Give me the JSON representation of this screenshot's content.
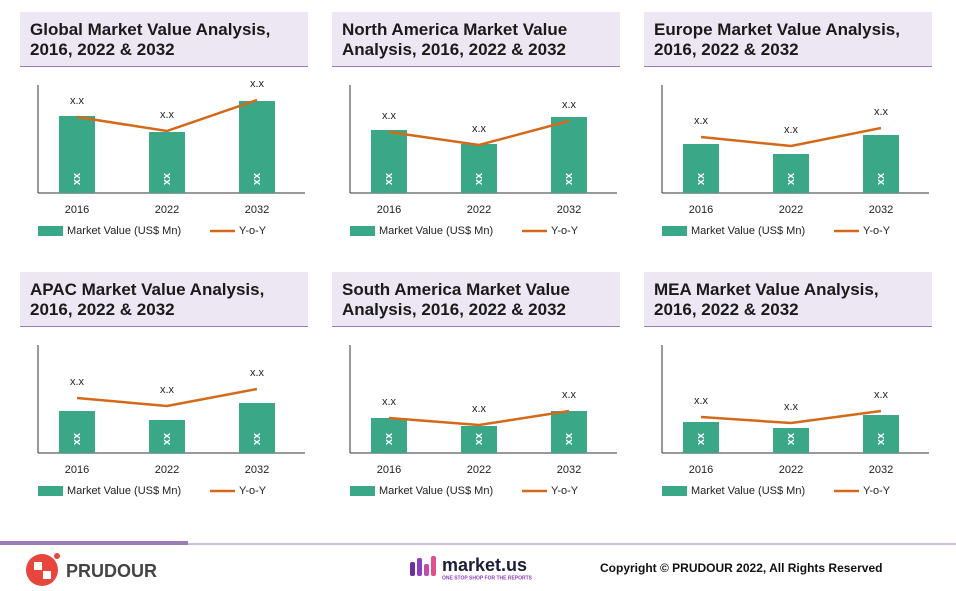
{
  "chart_data": [
    {
      "type": "bar",
      "title": "Global Market Value Analysis, 2016, 2022 & 2032",
      "categories": [
        "2016",
        "2022",
        "2032"
      ],
      "ylim": [
        0,
        108
      ],
      "series": [
        {
          "name": "Market Value (US$ Mn)",
          "color": "#3aa787",
          "values": [
            77,
            61,
            92
          ],
          "value_labels": [
            "xx",
            "xx",
            "xx"
          ]
        },
        {
          "name": "Y-o-Y",
          "type": "line",
          "color": "#d4691a",
          "values": [
            76,
            62,
            93
          ],
          "value_labels": [
            "x.x",
            "x.x",
            "x.x"
          ]
        }
      ]
    },
    {
      "type": "bar",
      "title": "North America Market Value Analysis, 2016, 2022 & 2032",
      "categories": [
        "2016",
        "2022",
        "2032"
      ],
      "ylim": [
        0,
        108
      ],
      "series": [
        {
          "name": "Market Value (US$ Mn)",
          "color": "#3aa787",
          "values": [
            63,
            49,
            76
          ],
          "value_labels": [
            "xx",
            "xx",
            "xx"
          ]
        },
        {
          "name": "Y-o-Y",
          "type": "line",
          "color": "#d4691a",
          "values": [
            61,
            48,
            72
          ],
          "value_labels": [
            "x.x",
            "x.x",
            "x.x"
          ]
        }
      ]
    },
    {
      "type": "bar",
      "title": "Europe Market Value Analysis, 2016, 2022 & 2032",
      "categories": [
        "2016",
        "2022",
        "2032"
      ],
      "ylim": [
        0,
        108
      ],
      "series": [
        {
          "name": "Market Value (US$ Mn)",
          "color": "#3aa787",
          "values": [
            49,
            39,
            58
          ],
          "value_labels": [
            "xx",
            "xx",
            "xx"
          ]
        },
        {
          "name": "Y-o-Y",
          "type": "line",
          "color": "#d4691a",
          "values": [
            56,
            47,
            65
          ],
          "value_labels": [
            "x.x",
            "x.x",
            "x.x"
          ]
        }
      ]
    },
    {
      "type": "bar",
      "title": "APAC Market Value Analysis, 2016, 2022 & 2032",
      "categories": [
        "2016",
        "2022",
        "2032"
      ],
      "ylim": [
        0,
        108
      ],
      "series": [
        {
          "name": "Market Value (US$ Mn)",
          "color": "#3aa787",
          "values": [
            42,
            33,
            50
          ],
          "value_labels": [
            "xx",
            "xx",
            "xx"
          ]
        },
        {
          "name": "Y-o-Y",
          "type": "line",
          "color": "#d4691a",
          "values": [
            55,
            47,
            64
          ],
          "value_labels": [
            "x.x",
            "x.x",
            "x.x"
          ]
        }
      ]
    },
    {
      "type": "bar",
      "title": "South America Market Value Analysis, 2016, 2022 & 2032",
      "categories": [
        "2016",
        "2022",
        "2032"
      ],
      "ylim": [
        0,
        108
      ],
      "series": [
        {
          "name": "Market Value (US$ Mn)",
          "color": "#3aa787",
          "values": [
            35,
            27,
            42
          ],
          "value_labels": [
            "xx",
            "xx",
            "xx"
          ]
        },
        {
          "name": "Y-o-Y",
          "type": "line",
          "color": "#d4691a",
          "values": [
            35,
            28,
            42
          ],
          "value_labels": [
            "x.x",
            "x.x",
            "x.x"
          ]
        }
      ]
    },
    {
      "type": "bar",
      "title": "MEA Market Value Analysis, 2016, 2022 & 2032",
      "categories": [
        "2016",
        "2022",
        "2032"
      ],
      "ylim": [
        0,
        108
      ],
      "series": [
        {
          "name": "Market Value (US$ Mn)",
          "color": "#3aa787",
          "values": [
            31,
            25,
            38
          ],
          "value_labels": [
            "xx",
            "xx",
            "xx"
          ]
        },
        {
          "name": "Y-o-Y",
          "type": "line",
          "color": "#d4691a",
          "values": [
            36,
            30,
            42
          ],
          "value_labels": [
            "x.x",
            "x.x",
            "x.x"
          ]
        }
      ]
    }
  ],
  "footer": {
    "brand": "PRUDOUR",
    "partner": "market.us",
    "partner_tagline": "ONE STOP SHOP FOR THE REPORTS",
    "copyright": "Copyright © PRUDOUR 2022, All Rights Reserved"
  }
}
